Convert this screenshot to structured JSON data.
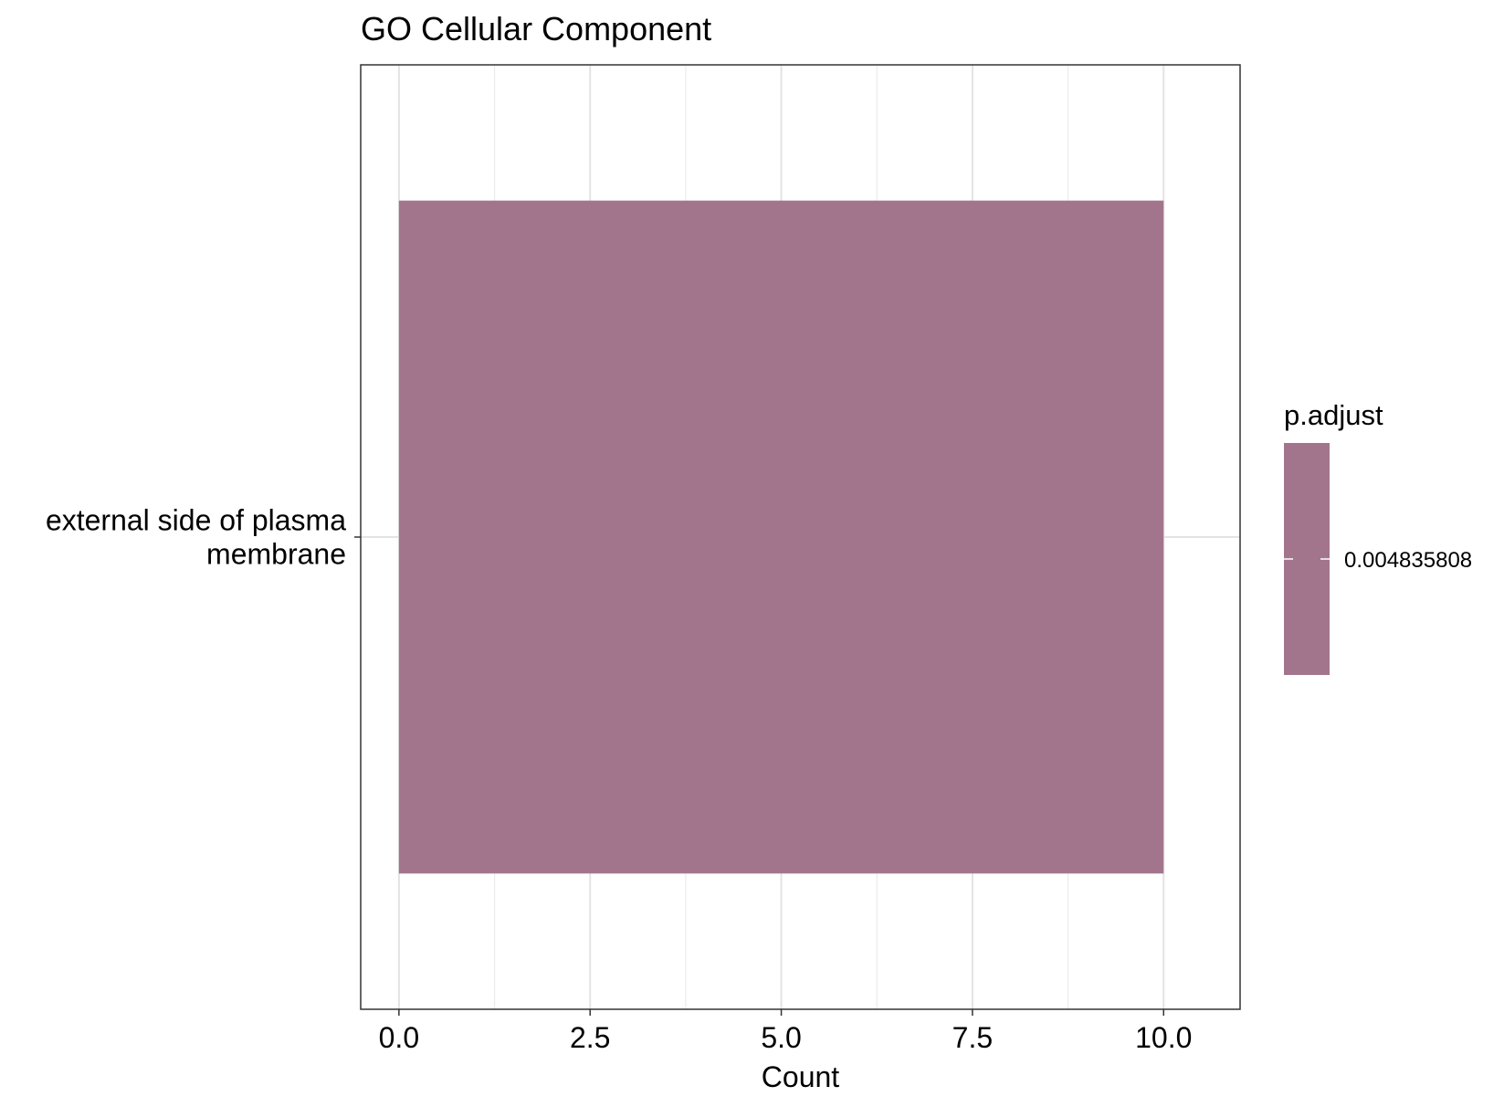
{
  "chart_data": {
    "type": "bar",
    "orientation": "horizontal",
    "title": "GO Cellular Component",
    "xlabel": "Count",
    "ylabel": "",
    "categories": [
      "external side of plasma membrane"
    ],
    "category_label_lines": [
      [
        "external side of plasma",
        "membrane"
      ]
    ],
    "values": [
      10
    ],
    "xlim": [
      -0.5,
      11.0
    ],
    "x_ticks": [
      0.0,
      2.5,
      5.0,
      7.5,
      10.0
    ],
    "x_tick_labels": [
      "0.0",
      "2.5",
      "5.0",
      "7.5",
      "10.0"
    ],
    "grid": true,
    "bar_color": "#a3758d",
    "legend": {
      "title": "p.adjust",
      "placement": "right",
      "value_label": "0.004835808",
      "color": "#a3758d"
    }
  }
}
